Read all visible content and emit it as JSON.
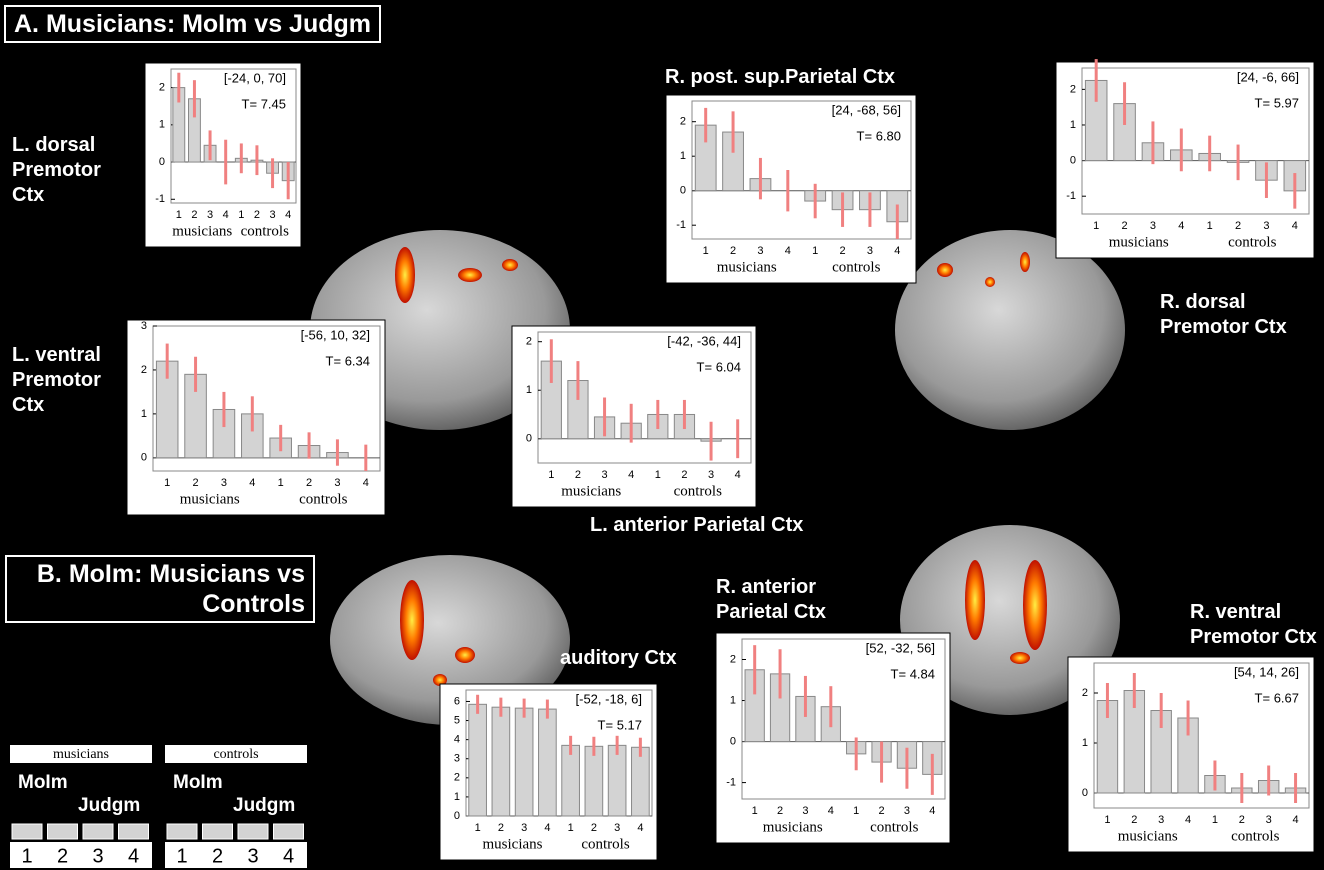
{
  "panels": [
    "A. Musicians: MoIm vs Judgm",
    "B. MoIm: Musicians vs Controls"
  ],
  "chart_data": [
    {
      "type": "bar",
      "title": "L. dorsal Premotor Ctx",
      "coordinates": "[-24, 0, 70]",
      "stat": "T= 7.45",
      "categories": [
        "1",
        "2",
        "3",
        "4",
        "1",
        "2",
        "3",
        "4"
      ],
      "groups": [
        "musicians",
        "controls"
      ],
      "values": [
        2.0,
        1.7,
        0.45,
        0.0,
        0.1,
        0.05,
        -0.3,
        -0.5
      ],
      "errors": [
        0.4,
        0.5,
        0.4,
        0.6,
        0.4,
        0.4,
        0.4,
        0.5
      ],
      "ylim": [
        -1.1,
        2.5
      ],
      "yticks": [
        -1,
        0,
        1,
        2
      ],
      "color": "#d3d3d3",
      "error_color": "#f08080"
    },
    {
      "type": "bar",
      "title": "L. ventral Premotor Ctx",
      "coordinates": "[-56, 10, 32]",
      "stat": "T= 6.34",
      "categories": [
        "1",
        "2",
        "3",
        "4",
        "1",
        "2",
        "3",
        "4"
      ],
      "groups": [
        "musicians",
        "controls"
      ],
      "values": [
        2.2,
        1.9,
        1.1,
        1.0,
        0.45,
        0.28,
        0.12,
        0.0
      ],
      "errors": [
        0.4,
        0.4,
        0.4,
        0.4,
        0.3,
        0.3,
        0.3,
        0.3
      ],
      "ylim": [
        -0.3,
        3.0
      ],
      "yticks": [
        0,
        1,
        2,
        3
      ],
      "color": "#d3d3d3",
      "error_color": "#f08080"
    },
    {
      "type": "bar",
      "title": "L. anterior  Parietal Ctx",
      "coordinates": "[-42, -36, 44]",
      "stat": "T= 6.04",
      "categories": [
        "1",
        "2",
        "3",
        "4",
        "1",
        "2",
        "3",
        "4"
      ],
      "groups": [
        "musicians",
        "controls"
      ],
      "values": [
        1.6,
        1.2,
        0.45,
        0.32,
        0.5,
        0.5,
        -0.05,
        0.0
      ],
      "errors": [
        0.45,
        0.4,
        0.4,
        0.4,
        0.3,
        0.3,
        0.4,
        0.4
      ],
      "ylim": [
        -0.5,
        2.2
      ],
      "yticks": [
        0,
        1,
        2
      ],
      "color": "#d3d3d3",
      "error_color": "#f08080"
    },
    {
      "type": "bar",
      "title": "R. post. sup.Parietal Ctx",
      "coordinates": "[24, -68, 56]",
      "stat": "T= 6.80",
      "categories": [
        "1",
        "2",
        "3",
        "4",
        "1",
        "2",
        "3",
        "4"
      ],
      "groups": [
        "musicians",
        "controls"
      ],
      "values": [
        1.9,
        1.7,
        0.35,
        0.0,
        -0.3,
        -0.55,
        -0.55,
        -0.9
      ],
      "errors": [
        0.5,
        0.6,
        0.6,
        0.6,
        0.5,
        0.5,
        0.5,
        0.5
      ],
      "ylim": [
        -1.4,
        2.6
      ],
      "yticks": [
        -1,
        0,
        1,
        2
      ],
      "color": "#d3d3d3",
      "error_color": "#f08080"
    },
    {
      "type": "bar",
      "title": "R. dorsal Premotor Ctx",
      "coordinates": "[24, -6, 66]",
      "stat": "T= 5.97",
      "categories": [
        "1",
        "2",
        "3",
        "4",
        "1",
        "2",
        "3",
        "4"
      ],
      "groups": [
        "musicians",
        "controls"
      ],
      "values": [
        2.25,
        1.6,
        0.5,
        0.3,
        0.2,
        -0.05,
        -0.55,
        -0.85
      ],
      "errors": [
        0.6,
        0.6,
        0.6,
        0.6,
        0.5,
        0.5,
        0.5,
        0.5
      ],
      "ylim": [
        -1.5,
        2.6
      ],
      "yticks": [
        -1,
        0,
        1,
        2
      ],
      "color": "#d3d3d3",
      "error_color": "#f08080"
    },
    {
      "type": "bar",
      "title": "auditory Ctx",
      "coordinates": "[-52, -18, 6]",
      "stat": "T= 5.17",
      "categories": [
        "1",
        "2",
        "3",
        "4",
        "1",
        "2",
        "3",
        "4"
      ],
      "groups": [
        "musicians",
        "controls"
      ],
      "values": [
        5.85,
        5.7,
        5.65,
        5.6,
        3.7,
        3.65,
        3.7,
        3.6
      ],
      "errors": [
        0.5,
        0.5,
        0.5,
        0.5,
        0.5,
        0.5,
        0.5,
        0.5
      ],
      "ylim": [
        0,
        6.6
      ],
      "yticks": [
        0,
        1,
        2,
        3,
        4,
        5,
        6
      ],
      "color": "#d3d3d3",
      "error_color": "#f08080"
    },
    {
      "type": "bar",
      "title": "R. anterior Parietal Ctx",
      "coordinates": "[52, -32, 56]",
      "stat": "T= 4.84",
      "categories": [
        "1",
        "2",
        "3",
        "4",
        "1",
        "2",
        "3",
        "4"
      ],
      "groups": [
        "musicians",
        "controls"
      ],
      "values": [
        1.75,
        1.65,
        1.1,
        0.85,
        -0.3,
        -0.5,
        -0.65,
        -0.8
      ],
      "errors": [
        0.6,
        0.6,
        0.5,
        0.5,
        0.4,
        0.5,
        0.5,
        0.5
      ],
      "ylim": [
        -1.4,
        2.5
      ],
      "yticks": [
        -1,
        0,
        1,
        2
      ],
      "color": "#d3d3d3",
      "error_color": "#f08080"
    },
    {
      "type": "bar",
      "title": "R. ventral Premotor Ctx",
      "coordinates": "[54, 14, 26]",
      "stat": "T= 6.67",
      "categories": [
        "1",
        "2",
        "3",
        "4",
        "1",
        "2",
        "3",
        "4"
      ],
      "groups": [
        "musicians",
        "controls"
      ],
      "values": [
        1.85,
        2.05,
        1.65,
        1.5,
        0.35,
        0.1,
        0.25,
        0.1
      ],
      "errors": [
        0.35,
        0.35,
        0.35,
        0.35,
        0.3,
        0.3,
        0.3,
        0.3
      ],
      "ylim": [
        -0.3,
        2.6
      ],
      "yticks": [
        0,
        1,
        2
      ],
      "color": "#d3d3d3",
      "error_color": "#f08080"
    }
  ],
  "legend": {
    "groups": [
      "musicians",
      "controls"
    ],
    "conditions": [
      "MoIm",
      "Judgm"
    ],
    "numbers": [
      1,
      2,
      3,
      4
    ]
  }
}
